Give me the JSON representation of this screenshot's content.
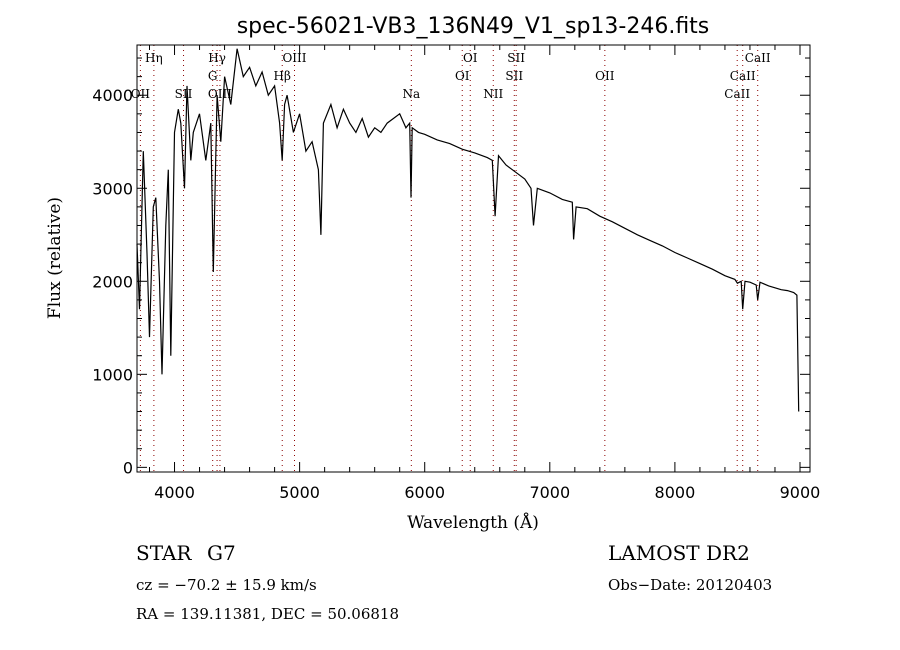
{
  "chart_data": {
    "type": "line",
    "title": "spec-56021-VB3_136N49_V1_sp13-246.fits",
    "xlabel": "Wavelength (Å)",
    "ylabel": "Flux (relative)",
    "xlim": [
      3700,
      9080
    ],
    "ylim": [
      -50,
      4540
    ],
    "xticks": [
      4000,
      5000,
      6000,
      7000,
      8000,
      9000
    ],
    "yticks": [
      0,
      1000,
      2000,
      3000,
      4000
    ],
    "grid": false,
    "series": [
      {
        "name": "spectrum",
        "x": [
          3700,
          3720,
          3750,
          3780,
          3800,
          3830,
          3850,
          3880,
          3900,
          3930,
          3950,
          3970,
          4000,
          4030,
          4050,
          4080,
          4100,
          4130,
          4150,
          4200,
          4250,
          4290,
          4310,
          4340,
          4370,
          4400,
          4450,
          4500,
          4550,
          4600,
          4650,
          4700,
          4750,
          4800,
          4840,
          4861,
          4880,
          4900,
          4950,
          5000,
          5050,
          5100,
          5150,
          5170,
          5190,
          5250,
          5300,
          5350,
          5400,
          5450,
          5500,
          5550,
          5600,
          5650,
          5700,
          5750,
          5800,
          5850,
          5880,
          5890,
          5900,
          5950,
          6000,
          6100,
          6200,
          6300,
          6400,
          6500,
          6540,
          6563,
          6590,
          6650,
          6700,
          6750,
          6800,
          6850,
          6870,
          6900,
          7000,
          7100,
          7180,
          7190,
          7210,
          7300,
          7400,
          7500,
          7600,
          7700,
          7800,
          7900,
          8000,
          8100,
          8200,
          8300,
          8400,
          8480,
          8500,
          8530,
          8542,
          8560,
          8600,
          8650,
          8662,
          8680,
          8750,
          8800,
          8850,
          8900,
          8950,
          8975,
          8990
        ],
        "y": [
          2400,
          1700,
          3400,
          2300,
          1400,
          2800,
          2900,
          2000,
          1000,
          2600,
          3200,
          1200,
          3600,
          3850,
          3700,
          3000,
          4100,
          3300,
          3600,
          3800,
          3300,
          3700,
          2100,
          4000,
          3500,
          4200,
          3900,
          4500,
          4200,
          4300,
          4100,
          4250,
          4000,
          4100,
          3700,
          3300,
          3900,
          4000,
          3600,
          3800,
          3400,
          3500,
          3200,
          2500,
          3700,
          3900,
          3650,
          3850,
          3700,
          3600,
          3750,
          3550,
          3650,
          3600,
          3700,
          3750,
          3800,
          3650,
          3700,
          2900,
          3650,
          3600,
          3580,
          3520,
          3480,
          3420,
          3380,
          3330,
          3300,
          2700,
          3350,
          3250,
          3200,
          3150,
          3100,
          3000,
          2600,
          3000,
          2950,
          2880,
          2850,
          2450,
          2800,
          2780,
          2700,
          2640,
          2570,
          2500,
          2440,
          2380,
          2310,
          2250,
          2190,
          2130,
          2060,
          2020,
          1980,
          2000,
          1700,
          2000,
          1990,
          1960,
          1800,
          1990,
          1950,
          1930,
          1910,
          1900,
          1880,
          1850,
          600
        ]
      }
    ],
    "line_markers": [
      {
        "label": "OII",
        "wl": 3727,
        "row": 2
      },
      {
        "label": "Hη",
        "wl": 3835,
        "row": 0
      },
      {
        "label": "SII",
        "wl": 4072,
        "row": 2
      },
      {
        "label": "G",
        "wl": 4305,
        "row": 1
      },
      {
        "label": "Hγ",
        "wl": 4340,
        "row": 0
      },
      {
        "label": "OIII",
        "wl": 4363,
        "row": 2
      },
      {
        "label": "Hβ",
        "wl": 4861,
        "row": 1
      },
      {
        "label": "OIII",
        "wl": 4959,
        "row": 0
      },
      {
        "label": "Na",
        "wl": 5893,
        "row": 2
      },
      {
        "label": "OI",
        "wl": 6300,
        "row": 1
      },
      {
        "label": "OI",
        "wl": 6364,
        "row": 0
      },
      {
        "label": "NII",
        "wl": 6548,
        "row": 2
      },
      {
        "label": "SII",
        "wl": 6716,
        "row": 1
      },
      {
        "label": "SII",
        "wl": 6731,
        "row": 0
      },
      {
        "label": "OII",
        "wl": 7440,
        "row": 1
      },
      {
        "label": "CaII",
        "wl": 8498,
        "row": 2
      },
      {
        "label": "CaII",
        "wl": 8542,
        "row": 1
      },
      {
        "label": "CaII",
        "wl": 8662,
        "row": 0
      }
    ]
  },
  "info": {
    "object_class": "STAR",
    "subclass": "G7",
    "survey": "LAMOST DR2",
    "redshift": "cz = −70.2 ± 15.9 km/s",
    "obs_date": "Obs−Date: 20120403",
    "coords": "RA = 139.11381, DEC =  50.06818"
  },
  "colors": {
    "spectrum": "#000000",
    "marker": "#8b0000"
  }
}
